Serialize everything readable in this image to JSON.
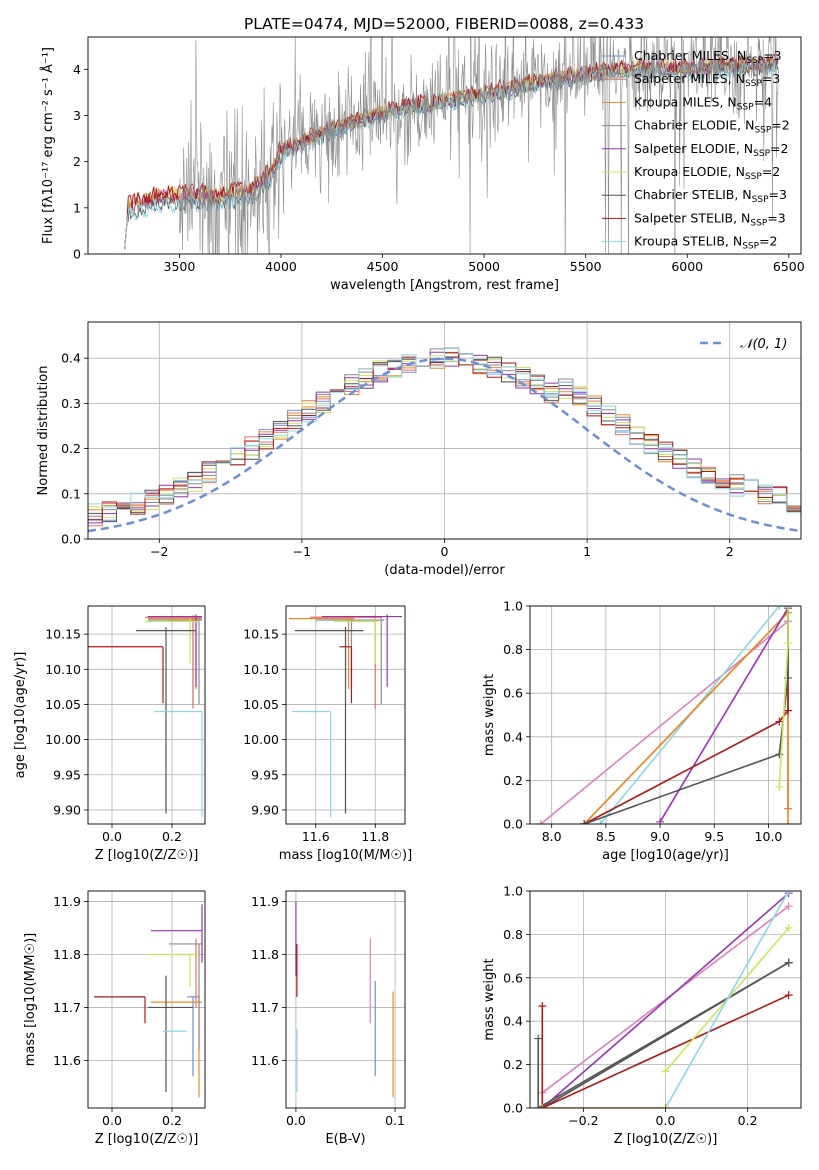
{
  "figure_title": "PLATE=0474, MJD=52000, FIBERID=0088, z=0.433",
  "colors": {
    "Chabrier MILES": "#6d8fe0",
    "Salpeter MILES": "#e8735f",
    "Kroupa MILES": "#ed8a1e",
    "Chabrier ELODIE": "#8c8c8c",
    "Salpeter ELODIE": "#9b30b5",
    "Kroupa ELODIE": "#c9e65a",
    "Chabrier STELIB": "#555555",
    "Salpeter STELIB": "#b01818",
    "Kroupa STELIB": "#88d8e8",
    "pink": "#e07fc0",
    "gauss": "#6a8fd6"
  },
  "chart_data": [
    {
      "id": "spectrum",
      "type": "line",
      "title": "PLATE=0474, MJD=52000, FIBERID=0088, z=0.433",
      "xlabel": "wavelength [Angstrom, rest frame]",
      "ylabel": "Flux [fλ10⁻¹⁷ erg cm⁻² s⁻¹ Å⁻¹]",
      "xlim": [
        3050,
        6560
      ],
      "ylim": [
        0,
        4.7
      ],
      "xticks": [
        3500,
        4000,
        4500,
        5000,
        5500,
        6000,
        6500
      ],
      "yticks": [
        0,
        1,
        2,
        3,
        4
      ],
      "legend_position": "top-right",
      "legend": [
        {
          "label": "Chabrier MILES, N",
          "sub": "SSP",
          "tail": "=3"
        },
        {
          "label": "Salpeter MILES, N",
          "sub": "SSP",
          "tail": "=3"
        },
        {
          "label": "Kroupa MILES, N",
          "sub": "SSP",
          "tail": "=4"
        },
        {
          "label": "Chabrier ELODIE, N",
          "sub": "SSP",
          "tail": "=2"
        },
        {
          "label": "Salpeter ELODIE, N",
          "sub": "SSP",
          "tail": "=2"
        },
        {
          "label": "Kroupa ELODIE, N",
          "sub": "SSP",
          "tail": "=2"
        },
        {
          "label": "Chabrier STELIB, N",
          "sub": "SSP",
          "tail": "=3"
        },
        {
          "label": "Salpeter STELIB, N",
          "sub": "SSP",
          "tail": "=3"
        },
        {
          "label": "Kroupa STELIB, N",
          "sub": "SSP",
          "tail": "=2"
        }
      ],
      "continuum_x": [
        3230,
        3400,
        3500,
        3700,
        3850,
        3950,
        4000,
        4200,
        4400,
        4600,
        4800,
        5000,
        5200,
        5400,
        5600,
        5800,
        6000,
        6200,
        6450
      ],
      "continuum_y": [
        0.95,
        1.2,
        1.2,
        1.2,
        1.3,
        1.7,
        2.2,
        2.6,
        2.9,
        3.15,
        3.3,
        3.45,
        3.65,
        3.8,
        3.95,
        4.0,
        4.0,
        4.05,
        4.1
      ],
      "data_x_range": [
        3230,
        6450
      ]
    },
    {
      "id": "residual_histogram",
      "type": "step",
      "xlabel": "(data-model)/error",
      "ylabel": "Normed distribution",
      "xlim": [
        -2.5,
        2.5
      ],
      "ylim": [
        0,
        0.48
      ],
      "xticks": [
        -2,
        -1,
        0,
        1,
        2
      ],
      "yticks": [
        0.0,
        0.1,
        0.2,
        0.3,
        0.4
      ],
      "legend": "N(0,1)",
      "legend_position": "top-right",
      "gaussian": {
        "mean": 0,
        "sigma": 1
      }
    },
    {
      "id": "age_vs_Z",
      "type": "errorbar",
      "xlabel": "Z [log10(Z/Z☉)]",
      "ylabel": "age [log10(age/yr)]",
      "xlim": [
        -0.08,
        0.31
      ],
      "ylim": [
        9.88,
        10.19
      ],
      "xticks": [
        0.0,
        0.2
      ],
      "yticks": [
        9.9,
        9.95,
        10.0,
        10.05,
        10.1,
        10.15
      ],
      "points": [
        {
          "series": "Chabrier MILES",
          "x": 0.27,
          "y": 10.17,
          "xerr": [
            0.15,
            0.03
          ],
          "yerr": [
            0.12,
            0.005
          ]
        },
        {
          "series": "Salpeter MILES",
          "x": 0.27,
          "y": 10.174,
          "xerr": [
            0.16,
            0.03
          ],
          "yerr": [
            0.13,
            0.003
          ]
        },
        {
          "series": "Kroupa MILES",
          "x": 0.28,
          "y": 10.172,
          "xerr": [
            0.16,
            0.02
          ],
          "yerr": [
            0.1,
            0.003
          ]
        },
        {
          "series": "Chabrier ELODIE",
          "x": 0.29,
          "y": 10.17,
          "xerr": [
            0.1,
            0.01
          ],
          "yerr": [
            0.12,
            0.004
          ]
        },
        {
          "series": "Salpeter ELODIE",
          "x": 0.28,
          "y": 10.175,
          "xerr": [
            0.16,
            0.02
          ],
          "yerr": [
            0.1,
            0.003
          ]
        },
        {
          "series": "Kroupa ELODIE",
          "x": 0.26,
          "y": 10.168,
          "xerr": [
            0.15,
            0.03
          ],
          "yerr": [
            0.06,
            0.004
          ]
        },
        {
          "series": "Chabrier STELIB",
          "x": 0.18,
          "y": 10.155,
          "xerr": [
            0.1,
            0.1
          ],
          "yerr": [
            0.26,
            0.005
          ]
        },
        {
          "series": "Salpeter STELIB",
          "x": 0.17,
          "y": 10.132,
          "xerr": [
            0.27,
            0.0
          ],
          "yerr": [
            0.08,
            0.0
          ]
        },
        {
          "series": "Kroupa STELIB",
          "x": 0.3,
          "y": 10.04,
          "xerr": [
            0.16,
            0.0
          ],
          "yerr": [
            0.15,
            0.0
          ]
        }
      ]
    },
    {
      "id": "age_vs_mass",
      "type": "errorbar",
      "xlabel": "mass [log10(M/M☉)]",
      "ylabel": "",
      "xlim": [
        11.5,
        11.9
      ],
      "ylim": [
        9.88,
        10.19
      ],
      "xticks": [
        11.6,
        11.8
      ],
      "yticks": [
        9.9,
        9.95,
        10.0,
        10.05,
        10.1,
        10.15
      ],
      "points": [
        {
          "series": "Chabrier MILES",
          "x": 11.72,
          "y": 10.17,
          "xerr": [
            0.12,
            0.01
          ],
          "yerr": [
            0.1,
            0.005
          ]
        },
        {
          "series": "Salpeter MILES",
          "x": 11.8,
          "y": 10.174,
          "xerr": [
            0.22,
            0.02
          ],
          "yerr": [
            0.13,
            0.003
          ]
        },
        {
          "series": "Kroupa MILES",
          "x": 11.71,
          "y": 10.172,
          "xerr": [
            0.2,
            0.02
          ],
          "yerr": [
            0.1,
            0.003
          ]
        },
        {
          "series": "Chabrier ELODIE",
          "x": 11.82,
          "y": 10.17,
          "xerr": [
            0.13,
            0.01
          ],
          "yerr": [
            0.12,
            0.004
          ]
        },
        {
          "series": "Salpeter ELODIE",
          "x": 11.84,
          "y": 10.175,
          "xerr": [
            0.22,
            0.05
          ],
          "yerr": [
            0.1,
            0.003
          ]
        },
        {
          "series": "Kroupa ELODIE",
          "x": 11.8,
          "y": 10.168,
          "xerr": [
            0.14,
            0.01
          ],
          "yerr": [
            0.06,
            0.004
          ]
        },
        {
          "series": "Chabrier STELIB",
          "x": 11.7,
          "y": 10.155,
          "xerr": [
            0.17,
            0.06
          ],
          "yerr": [
            0.26,
            0.005
          ]
        },
        {
          "series": "Salpeter STELIB",
          "x": 11.72,
          "y": 10.132,
          "xerr": [
            0.04,
            0.0
          ],
          "yerr": [
            0.08,
            0.0
          ]
        },
        {
          "series": "Kroupa STELIB",
          "x": 11.65,
          "y": 10.04,
          "xerr": [
            0.13,
            0.0
          ],
          "yerr": [
            0.15,
            0.0
          ]
        }
      ]
    },
    {
      "id": "cumulative_age",
      "type": "line",
      "xlabel": "age [log10(age/yr)]",
      "ylabel": "mass weight",
      "xlim": [
        7.8,
        10.3
      ],
      "ylim": [
        0,
        1
      ],
      "xticks": [
        8.0,
        8.5,
        9.0,
        9.5,
        10.0
      ],
      "yticks": [
        0.0,
        0.2,
        0.4,
        0.6,
        0.8,
        1.0
      ],
      "series": [
        {
          "color": "pink",
          "x": [
            7.9,
            10.18
          ],
          "y": [
            0.0,
            0.93
          ]
        },
        {
          "color": "Kroupa STELIB",
          "x": [
            8.45,
            10.1,
            10.18
          ],
          "y": [
            0.0,
            1.0,
            1.0
          ]
        },
        {
          "color": "Salpeter MILES",
          "x": [
            8.3,
            10.18,
            10.18
          ],
          "y": [
            0.0,
            0.97,
            0.07
          ]
        },
        {
          "color": "Kroupa MILES",
          "x": [
            8.3,
            10.18,
            10.18
          ],
          "y": [
            0.0,
            0.97,
            0.0
          ]
        },
        {
          "color": "Salpeter ELODIE",
          "x": [
            9.0,
            10.18
          ],
          "y": [
            0.01,
            0.99
          ]
        },
        {
          "color": "Salpeter STELIB",
          "x": [
            8.3,
            10.1,
            10.18,
            10.18
          ],
          "y": [
            0.0,
            0.47,
            0.52,
            1.0
          ]
        },
        {
          "color": "Chabrier STELIB",
          "x": [
            8.3,
            10.1,
            10.18,
            10.18
          ],
          "y": [
            0.0,
            0.32,
            0.67,
            1.0
          ]
        },
        {
          "color": "Kroupa ELODIE",
          "x": [
            10.1,
            10.18,
            10.18
          ],
          "y": [
            0.17,
            0.83,
            1.0
          ]
        }
      ]
    },
    {
      "id": "mass_vs_Z",
      "type": "errorbar",
      "xlabel": "Z [log10(Z/Z☉)]",
      "ylabel": "mass [log10(M/M☉)]",
      "xlim": [
        -0.08,
        0.31
      ],
      "ylim": [
        11.51,
        11.92
      ],
      "xticks": [
        0.0,
        0.2
      ],
      "yticks": [
        11.6,
        11.7,
        11.8,
        11.9
      ],
      "points": [
        {
          "series": "Chabrier MILES",
          "x": 0.27,
          "y": 11.72,
          "xerr": [
            0.02,
            0.02
          ],
          "yerr": [
            0.15,
            0.0
          ]
        },
        {
          "series": "Salpeter MILES",
          "x": 0.28,
          "y": 11.8,
          "xerr": [
            0.06,
            0.01
          ],
          "yerr": [
            0.1,
            0.03
          ]
        },
        {
          "series": "Kroupa MILES",
          "x": 0.29,
          "y": 11.71,
          "xerr": [
            0.16,
            0.01
          ],
          "yerr": [
            0.18,
            0.01
          ]
        },
        {
          "series": "Chabrier ELODIE",
          "x": 0.29,
          "y": 11.82,
          "xerr": [
            0.1,
            0.01
          ],
          "yerr": [
            0.2,
            0.0
          ]
        },
        {
          "series": "Salpeter ELODIE",
          "x": 0.3,
          "y": 11.845,
          "xerr": [
            0.17,
            0.0
          ],
          "yerr": [
            0.06,
            0.05
          ]
        },
        {
          "series": "Kroupa ELODIE",
          "x": 0.26,
          "y": 11.8,
          "xerr": [
            0.14,
            0.03
          ],
          "yerr": [
            0.06,
            0.0
          ]
        },
        {
          "series": "Chabrier STELIB",
          "x": 0.18,
          "y": 11.7,
          "xerr": [
            0.06,
            0.09
          ],
          "yerr": [
            0.16,
            0.06
          ]
        },
        {
          "series": "Salpeter STELIB",
          "x": 0.11,
          "y": 11.72,
          "xerr": [
            0.17,
            0.0
          ],
          "yerr": [
            0.05,
            0.0
          ]
        },
        {
          "series": "Kroupa STELIB",
          "x": 0.25,
          "y": 11.655,
          "xerr": [
            0.08,
            0.0
          ],
          "yerr": [
            0.0,
            0.0
          ]
        }
      ]
    },
    {
      "id": "mass_vs_EBV",
      "type": "errorbar",
      "xlabel": "E(B-V)",
      "ylabel": "",
      "xlim": [
        -0.01,
        0.11
      ],
      "ylim": [
        11.51,
        11.92
      ],
      "xticks": [
        0.0,
        0.1
      ],
      "yticks": [
        11.6,
        11.7,
        11.8,
        11.9
      ],
      "points": [
        {
          "series": "Chabrier MILES",
          "x": 0.08,
          "y": 11.66,
          "xerr": [
            0,
            0
          ],
          "yerr": [
            0.09,
            0.09
          ]
        },
        {
          "series": "pink",
          "x": 0.075,
          "y": 11.75,
          "xerr": [
            0,
            0
          ],
          "yerr": [
            0.08,
            0.08
          ]
        },
        {
          "series": "Kroupa MILES",
          "x": 0.098,
          "y": 11.63,
          "xerr": [
            0,
            0
          ],
          "yerr": [
            0.1,
            0.1
          ]
        },
        {
          "series": "Salpeter ELODIE",
          "x": 0.0,
          "y": 11.83,
          "xerr": [
            0,
            0
          ],
          "yerr": [
            0.07,
            0.07
          ]
        },
        {
          "series": "Salpeter STELIB",
          "x": 0.001,
          "y": 11.77,
          "xerr": [
            0,
            0
          ],
          "yerr": [
            0.05,
            0.05
          ]
        },
        {
          "series": "Kroupa STELIB",
          "x": 0.001,
          "y": 11.6,
          "xerr": [
            0,
            0
          ],
          "yerr": [
            0.06,
            0.06
          ]
        }
      ]
    },
    {
      "id": "cumulative_Z",
      "type": "line",
      "xlabel": "Z [log10(Z/Z☉)]",
      "ylabel": "mass weight",
      "xlim": [
        -0.33,
        0.33
      ],
      "ylim": [
        0,
        1
      ],
      "xticks": [
        -0.2,
        0.0,
        0.2
      ],
      "yticks": [
        0.0,
        0.2,
        0.4,
        0.6,
        0.8,
        1.0
      ],
      "series": [
        {
          "color": "pink",
          "x": [
            -0.3,
            0.3
          ],
          "y": [
            0.07,
            0.93
          ]
        },
        {
          "color": "Salpeter ELODIE",
          "x": [
            -0.3,
            0.3
          ],
          "y": [
            0.0,
            0.99
          ]
        },
        {
          "color": "Chabrier STELIB",
          "x": [
            -0.3,
            0.3
          ],
          "y": [
            0.0,
            0.67
          ]
        },
        {
          "color": "Salpeter STELIB",
          "x": [
            -0.3,
            -0.3,
            0.3
          ],
          "y": [
            0.47,
            0.0,
            0.52
          ]
        },
        {
          "color": "Chabrier STELIB",
          "x": [
            -0.31,
            -0.31,
            0.3
          ],
          "y": [
            0.32,
            0.0,
            0.67
          ]
        },
        {
          "color": "Kroupa ELODIE",
          "x": [
            0.0,
            0.3
          ],
          "y": [
            0.17,
            0.83
          ]
        },
        {
          "color": "Kroupa STELIB",
          "x": [
            0.0,
            0.3
          ],
          "y": [
            0.0,
            1.0
          ]
        },
        {
          "color": "Kroupa MILES",
          "x": [
            -0.3,
            0.0
          ],
          "y": [
            0.0,
            0.0
          ]
        }
      ]
    }
  ]
}
